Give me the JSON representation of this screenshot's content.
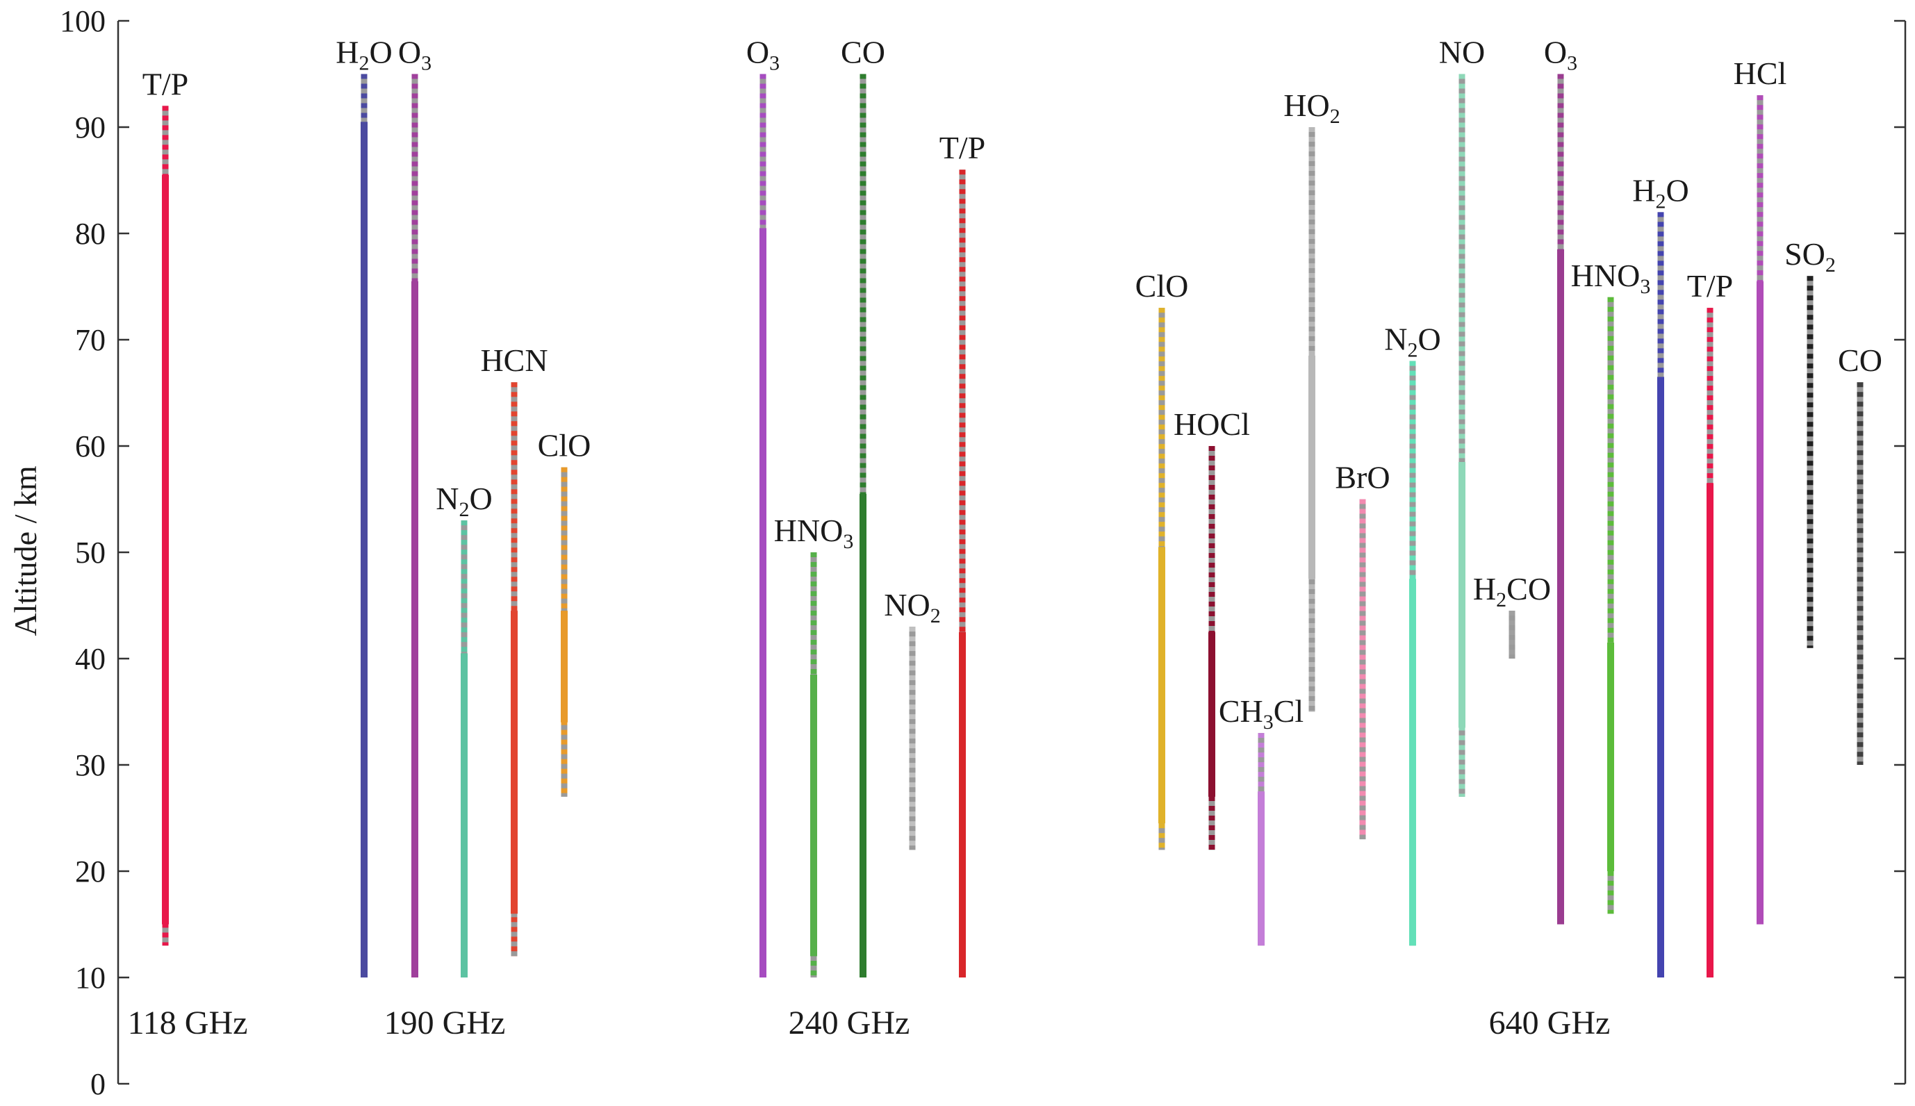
{
  "chart_data": {
    "type": "range",
    "title": "",
    "xlabel": "",
    "ylabel": "Altitude / km",
    "ylim": [
      0,
      100
    ],
    "yticks": [
      0,
      10,
      20,
      30,
      40,
      50,
      60,
      70,
      80,
      90,
      100
    ],
    "grid": false,
    "bands": [
      {
        "label": "118 GHz"
      },
      {
        "label": "190 GHz"
      },
      {
        "label": "240 GHz"
      },
      {
        "label": "640 GHz"
      }
    ],
    "series": [
      {
        "band": "118 GHz",
        "name": "T/P",
        "sub": "",
        "color": "#e8174a",
        "full": [
          13,
          92
        ],
        "solid": [
          15,
          85.5
        ]
      },
      {
        "band": "190 GHz",
        "name": "H",
        "sub": "2",
        "suffix": "O",
        "color": "#4b4aa0",
        "full": [
          10,
          95
        ],
        "solid": [
          10,
          90.5
        ]
      },
      {
        "band": "190 GHz",
        "name": "O",
        "sub": "3",
        "color": "#a0409c",
        "full": [
          10,
          95
        ],
        "solid": [
          10,
          75.5
        ]
      },
      {
        "band": "190 GHz",
        "name": "N",
        "sub": "2",
        "suffix": "O",
        "color": "#5cc3a2",
        "full": [
          10,
          53
        ],
        "solid": [
          10,
          40.5
        ]
      },
      {
        "band": "190 GHz",
        "name": "HCN",
        "sub": "",
        "color": "#e2442f",
        "full": [
          12,
          66
        ],
        "solid": [
          16,
          44.5
        ]
      },
      {
        "band": "190 GHz",
        "name": "ClO",
        "sub": "",
        "color": "#e89a2a",
        "full": [
          27,
          58
        ],
        "solid": [
          34,
          44.5
        ]
      },
      {
        "band": "240 GHz",
        "name": "O",
        "sub": "3",
        "color": "#a64cc0",
        "full": [
          10,
          95
        ],
        "solid": [
          10,
          80.5
        ]
      },
      {
        "band": "240 GHz",
        "name": "HNO",
        "sub": "3",
        "color": "#56b04a",
        "full": [
          10,
          50
        ],
        "solid": [
          12,
          38.5
        ]
      },
      {
        "band": "240 GHz",
        "name": "CO",
        "sub": "",
        "color": "#2e7d2e",
        "full": [
          10,
          95
        ],
        "solid": [
          10,
          55.5
        ]
      },
      {
        "band": "240 GHz",
        "name": "NO",
        "sub": "2",
        "color": "#c0c0c0",
        "full": [
          22,
          43
        ],
        "solid": null
      },
      {
        "band": "240 GHz",
        "name": "T/P",
        "sub": "",
        "color": "#d9262a",
        "full": [
          10,
          86
        ],
        "solid": [
          10,
          42.5
        ]
      },
      {
        "band": "640 GHz",
        "name": "ClO",
        "sub": "",
        "color": "#e0b22a",
        "full": [
          22,
          73
        ],
        "solid": [
          24.5,
          50.5
        ]
      },
      {
        "band": "640 GHz",
        "name": "HOCl",
        "sub": "",
        "color": "#8c1030",
        "full": [
          22,
          60
        ],
        "solid": [
          27,
          42.5
        ]
      },
      {
        "band": "640 GHz",
        "name": "CH",
        "sub": "3",
        "suffix": "Cl",
        "color": "#c47ed8",
        "full": [
          13,
          33
        ],
        "solid": [
          13,
          27.5
        ]
      },
      {
        "band": "640 GHz",
        "name": "HO",
        "sub": "2",
        "color": "#b8b8b8",
        "full": [
          35,
          90
        ],
        "solid": [
          47.5,
          68.5
        ]
      },
      {
        "band": "640 GHz",
        "name": "BrO",
        "sub": "",
        "color": "#f28ab0",
        "full": [
          23,
          55
        ],
        "solid": null
      },
      {
        "band": "640 GHz",
        "name": "N",
        "sub": "2",
        "suffix": "O",
        "color": "#63e0b8",
        "full": [
          13,
          68
        ],
        "solid": [
          13,
          47.5
        ]
      },
      {
        "band": "640 GHz",
        "name": "NO",
        "sub": "",
        "color": "#8ed8b8",
        "full": [
          27,
          95
        ],
        "solid": [
          33.5,
          58.5
        ]
      },
      {
        "band": "640 GHz",
        "name": "H",
        "sub": "2",
        "suffix": "CO",
        "color": "#a0a0a0",
        "full": [
          40,
          44.5
        ],
        "solid": null
      },
      {
        "band": "640 GHz",
        "name": "O",
        "sub": "3",
        "color": "#9a3c90",
        "full": [
          15,
          95
        ],
        "solid": [
          15,
          78.5
        ]
      },
      {
        "band": "640 GHz",
        "name": "HNO",
        "sub": "3",
        "color": "#5cbc3a",
        "full": [
          16,
          74
        ],
        "solid": [
          20,
          41.5
        ]
      },
      {
        "band": "640 GHz",
        "name": "H",
        "sub": "2",
        "suffix": "O",
        "color": "#4444b0",
        "full": [
          10,
          82
        ],
        "solid": [
          10,
          66.5
        ]
      },
      {
        "band": "640 GHz",
        "name": "T/P",
        "sub": "",
        "color": "#e8174a",
        "full": [
          10,
          73
        ],
        "solid": [
          10,
          56.5
        ]
      },
      {
        "band": "640 GHz",
        "name": "HCl",
        "sub": "",
        "color": "#b04cb8",
        "full": [
          15,
          93
        ],
        "solid": [
          15,
          75.5
        ]
      },
      {
        "band": "640 GHz",
        "name": "SO",
        "sub": "2",
        "color": "#202020",
        "full": [
          41,
          76
        ],
        "solid": null
      },
      {
        "band": "640 GHz",
        "name": "CO",
        "sub": "",
        "color": "#404040",
        "full": [
          30,
          66
        ],
        "solid": null
      }
    ]
  }
}
